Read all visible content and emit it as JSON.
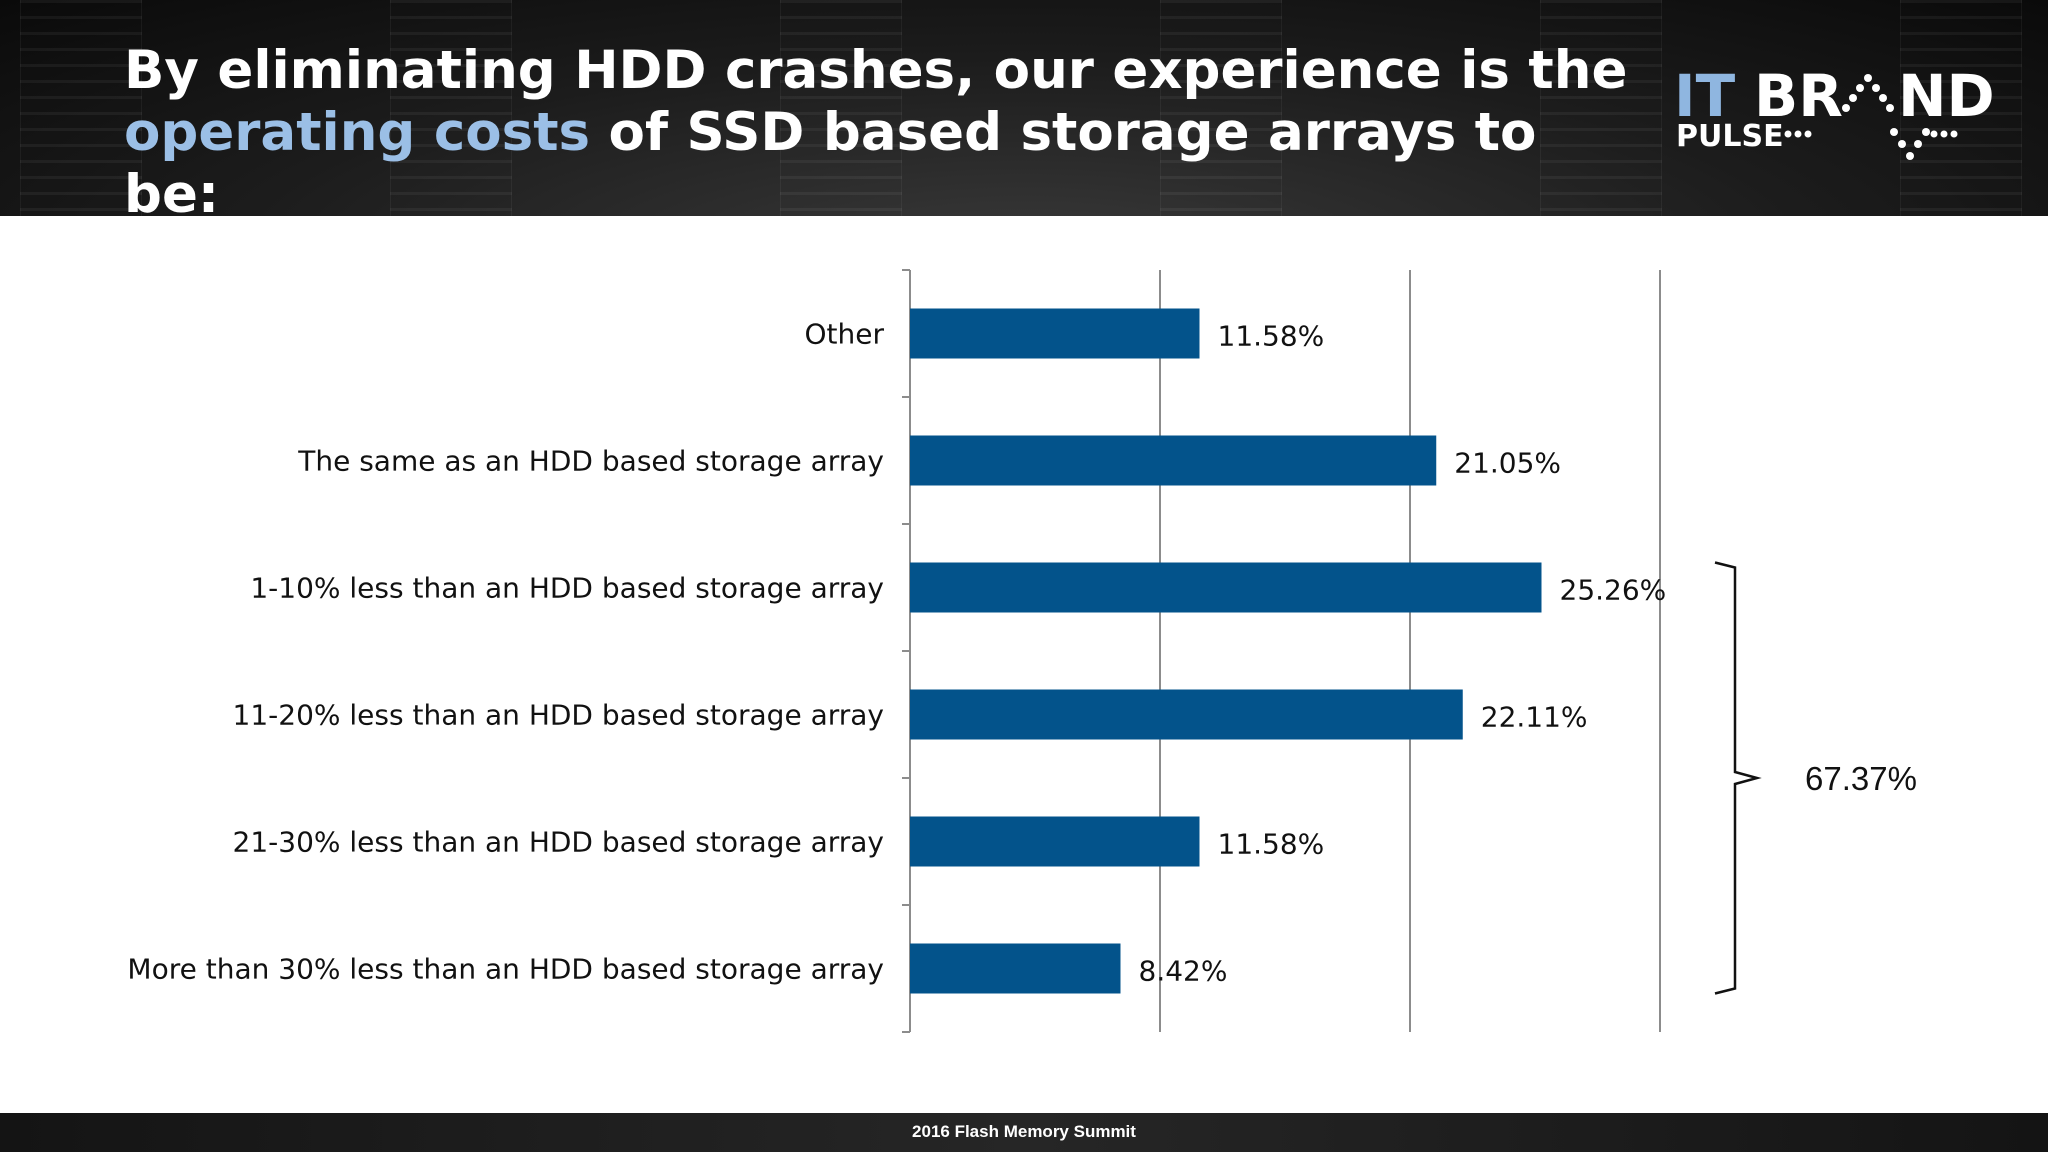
{
  "header": {
    "title_line1": "By eliminating HDD crashes, our experience is the",
    "title_highlight": "operating costs",
    "title_line2_rest": " of SSD based storage arrays to be:",
    "highlight_color": "#9bbfe6"
  },
  "logo": {
    "text_it": "IT",
    "text_brand_a": "BR",
    "text_brand_b": "ND",
    "text_pulse": "PULSE",
    "accent_color": "#8fb6e0"
  },
  "chart_data": {
    "type": "bar",
    "orientation": "horizontal",
    "categories": [
      "Other",
      "The same as an HDD based storage array",
      "1-10% less than an HDD based storage array",
      "11-20% less than an HDD based storage array",
      "21-30% less than an HDD based storage array",
      "More than 30% less than an HDD based storage array"
    ],
    "values": [
      11.58,
      21.05,
      25.26,
      22.11,
      11.58,
      8.42
    ],
    "value_labels": [
      "11.58%",
      "21.05%",
      "25.26%",
      "22.11%",
      "11.58%",
      "8.42%"
    ],
    "xlim": [
      0,
      30
    ],
    "vertical_gridlines": true,
    "bar_color": "#03538b",
    "bracket": {
      "from_category": 2,
      "to_category": 5,
      "label": "67.37%"
    }
  },
  "footer": {
    "text": "2016 Flash Memory Summit"
  }
}
